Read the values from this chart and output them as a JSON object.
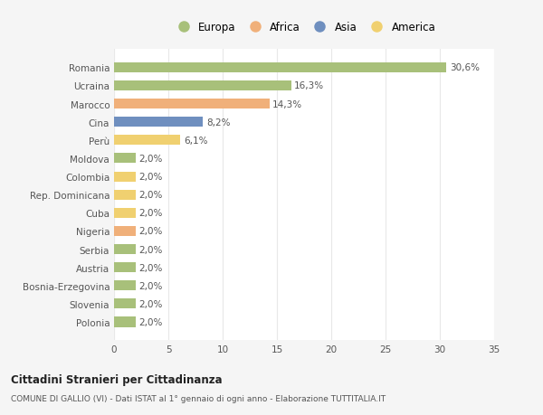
{
  "countries": [
    "Romania",
    "Ucraina",
    "Marocco",
    "Cina",
    "Perù",
    "Moldova",
    "Colombia",
    "Rep. Dominicana",
    "Cuba",
    "Nigeria",
    "Serbia",
    "Austria",
    "Bosnia-Erzegovina",
    "Slovenia",
    "Polonia"
  ],
  "values": [
    30.6,
    16.3,
    14.3,
    8.2,
    6.1,
    2.0,
    2.0,
    2.0,
    2.0,
    2.0,
    2.0,
    2.0,
    2.0,
    2.0,
    2.0
  ],
  "labels": [
    "30,6%",
    "16,3%",
    "14,3%",
    "8,2%",
    "6,1%",
    "2,0%",
    "2,0%",
    "2,0%",
    "2,0%",
    "2,0%",
    "2,0%",
    "2,0%",
    "2,0%",
    "2,0%",
    "2,0%"
  ],
  "continents": [
    "Europa",
    "Europa",
    "Africa",
    "Asia",
    "America",
    "Europa",
    "America",
    "America",
    "America",
    "Africa",
    "Europa",
    "Europa",
    "Europa",
    "Europa",
    "Europa"
  ],
  "continent_colors": {
    "Europa": "#a8c07a",
    "Africa": "#f0b07a",
    "Asia": "#6f8fbf",
    "America": "#f0d070"
  },
  "legend_order": [
    "Europa",
    "Africa",
    "Asia",
    "America"
  ],
  "legend_colors": [
    "#a8c07a",
    "#f0b07a",
    "#6f8fbf",
    "#f0d070"
  ],
  "title": "Cittadini Stranieri per Cittadinanza",
  "subtitle": "COMUNE DI GALLIO (VI) - Dati ISTAT al 1° gennaio di ogni anno - Elaborazione TUTTITALIA.IT",
  "xlim": [
    0,
    35
  ],
  "xticks": [
    0,
    5,
    10,
    15,
    20,
    25,
    30,
    35
  ],
  "background_color": "#f5f5f5",
  "plot_bg_color": "#ffffff",
  "grid_color": "#e8e8e8",
  "label_color": "#555555",
  "bar_label_color": "#555555"
}
